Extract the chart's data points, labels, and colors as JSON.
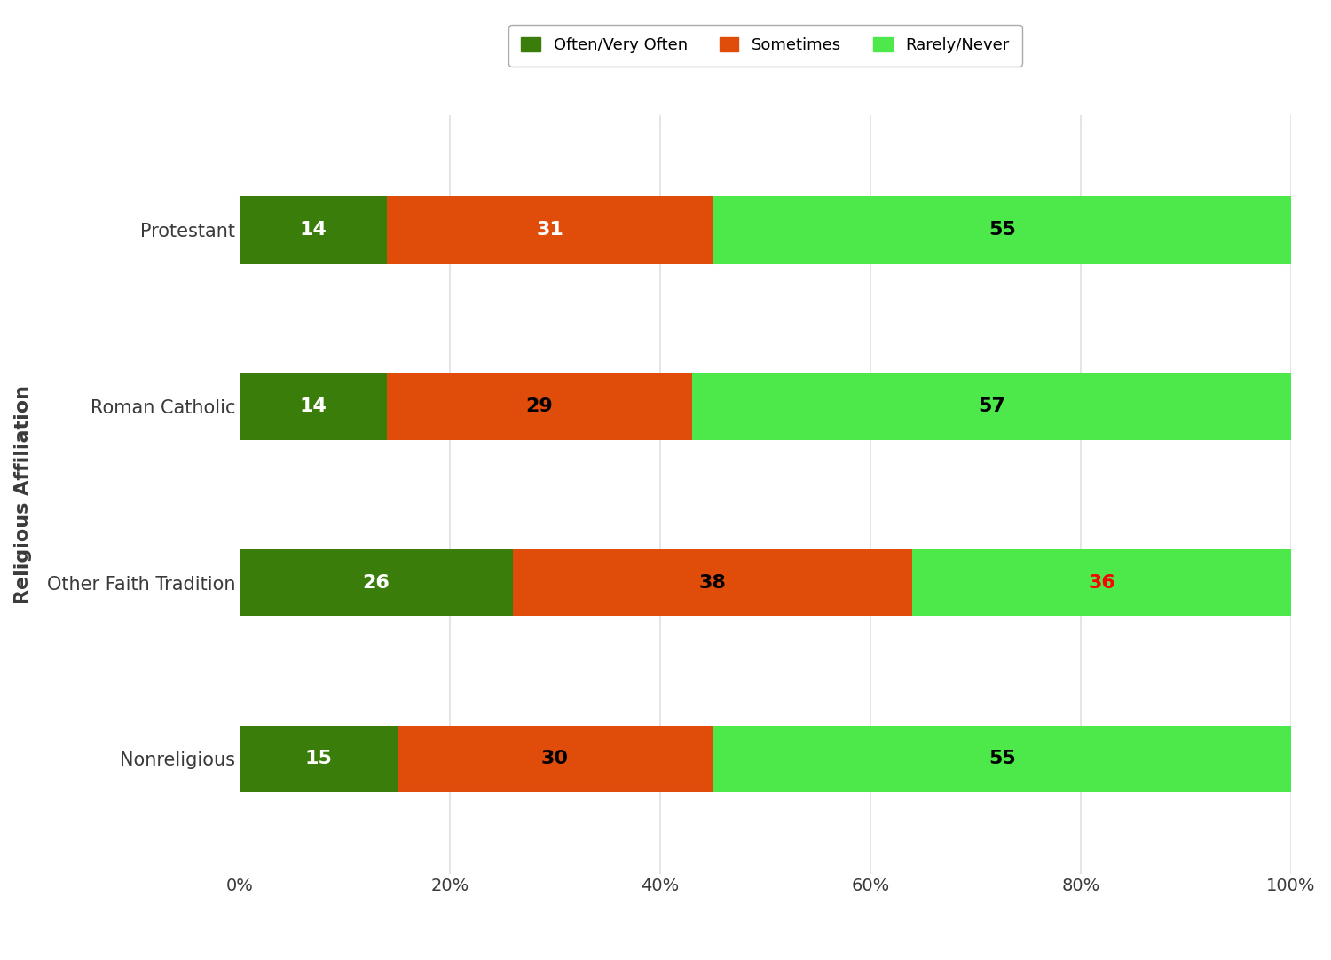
{
  "categories": [
    "Protestant",
    "Roman Catholic",
    "Other Faith Tradition",
    "Nonreligious"
  ],
  "often_values": [
    14,
    14,
    26,
    15
  ],
  "sometimes_values": [
    31,
    29,
    38,
    30
  ],
  "rarely_values": [
    55,
    57,
    36,
    55
  ],
  "often_color": "#3a7d0a",
  "sometimes_color": "#e04c0a",
  "rarely_color": "#4de84a",
  "background_color": "#ffffff",
  "plot_bg_color": "#ffffff",
  "ylabel": "Religious Affiliation",
  "xlabel_ticks": [
    "0%",
    "20%",
    "40%",
    "60%",
    "80%",
    "100%"
  ],
  "legend_labels": [
    "Often/Very Often",
    "Sometimes",
    "Rarely/Never"
  ],
  "bar_height": 0.38,
  "label_fontsize": 16,
  "tick_fontsize": 14,
  "axis_label_fontsize": 15,
  "text_colors": {
    "Protestant": [
      "white",
      "white",
      "black"
    ],
    "Roman Catholic": [
      "white",
      "black",
      "black"
    ],
    "Other Faith Tradition": [
      "white",
      "black",
      "red"
    ],
    "Nonreligious": [
      "white",
      "black",
      "black"
    ]
  },
  "grid_color": "#e0e0e0",
  "tick_color": "#3a3a3a"
}
